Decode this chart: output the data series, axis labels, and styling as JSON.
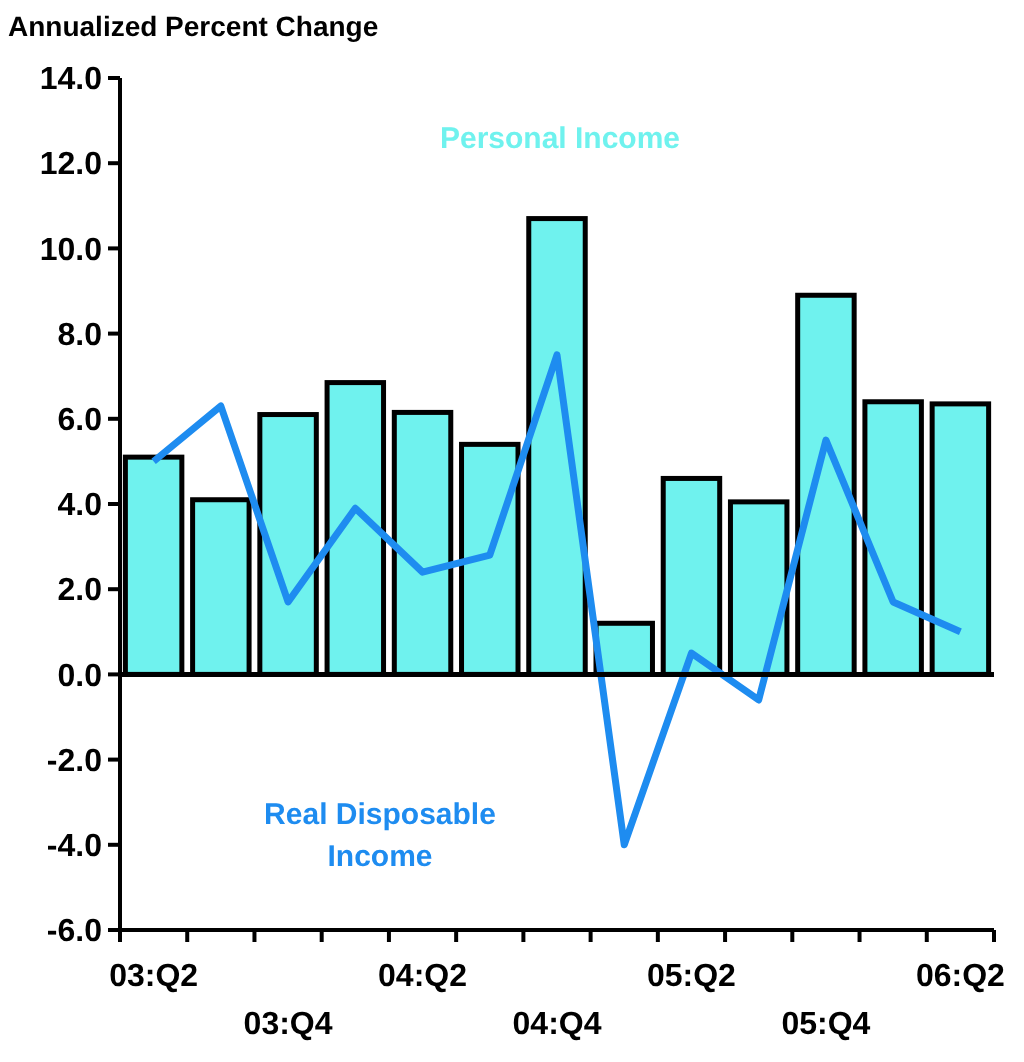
{
  "chart_data": {
    "type": "bar",
    "ylabel": "Annualized Percent Change",
    "categories": [
      "03:Q2",
      null,
      "03:Q4",
      null,
      "04:Q2",
      null,
      "04:Q4",
      null,
      "05:Q2",
      null,
      "05:Q4",
      null,
      "06:Q2"
    ],
    "series": [
      {
        "name": "Personal Income",
        "color": "#6ff2ee",
        "values": [
          5.1,
          4.1,
          6.1,
          6.85,
          6.15,
          5.4,
          10.7,
          1.2,
          4.6,
          4.05,
          8.9,
          6.4,
          6.35
        ]
      },
      {
        "name": "Real Disposable Income",
        "type": "line",
        "color": "#1e8cf0",
        "values": [
          5.0,
          6.3,
          1.7,
          3.9,
          2.4,
          2.8,
          7.5,
          -4.0,
          0.5,
          -0.6,
          5.5,
          1.7,
          1.0
        ]
      }
    ],
    "ylim": [
      -6,
      14
    ],
    "yticks": [
      {
        "value": -6,
        "label": "-6.0"
      },
      {
        "value": -4,
        "label": "-4.0"
      },
      {
        "value": -2,
        "label": "-2.0"
      },
      {
        "value": 0,
        "label": "0.0"
      },
      {
        "value": 2,
        "label": "2.0"
      },
      {
        "value": 4,
        "label": "4.0"
      },
      {
        "value": 6,
        "label": "6.0"
      },
      {
        "value": 8,
        "label": "8.0"
      },
      {
        "value": 10,
        "label": "10.0"
      },
      {
        "value": 12,
        "label": "12.0"
      },
      {
        "value": 14,
        "label": "14.0"
      }
    ],
    "legend": false,
    "marker": "none",
    "line_style": "solid"
  }
}
